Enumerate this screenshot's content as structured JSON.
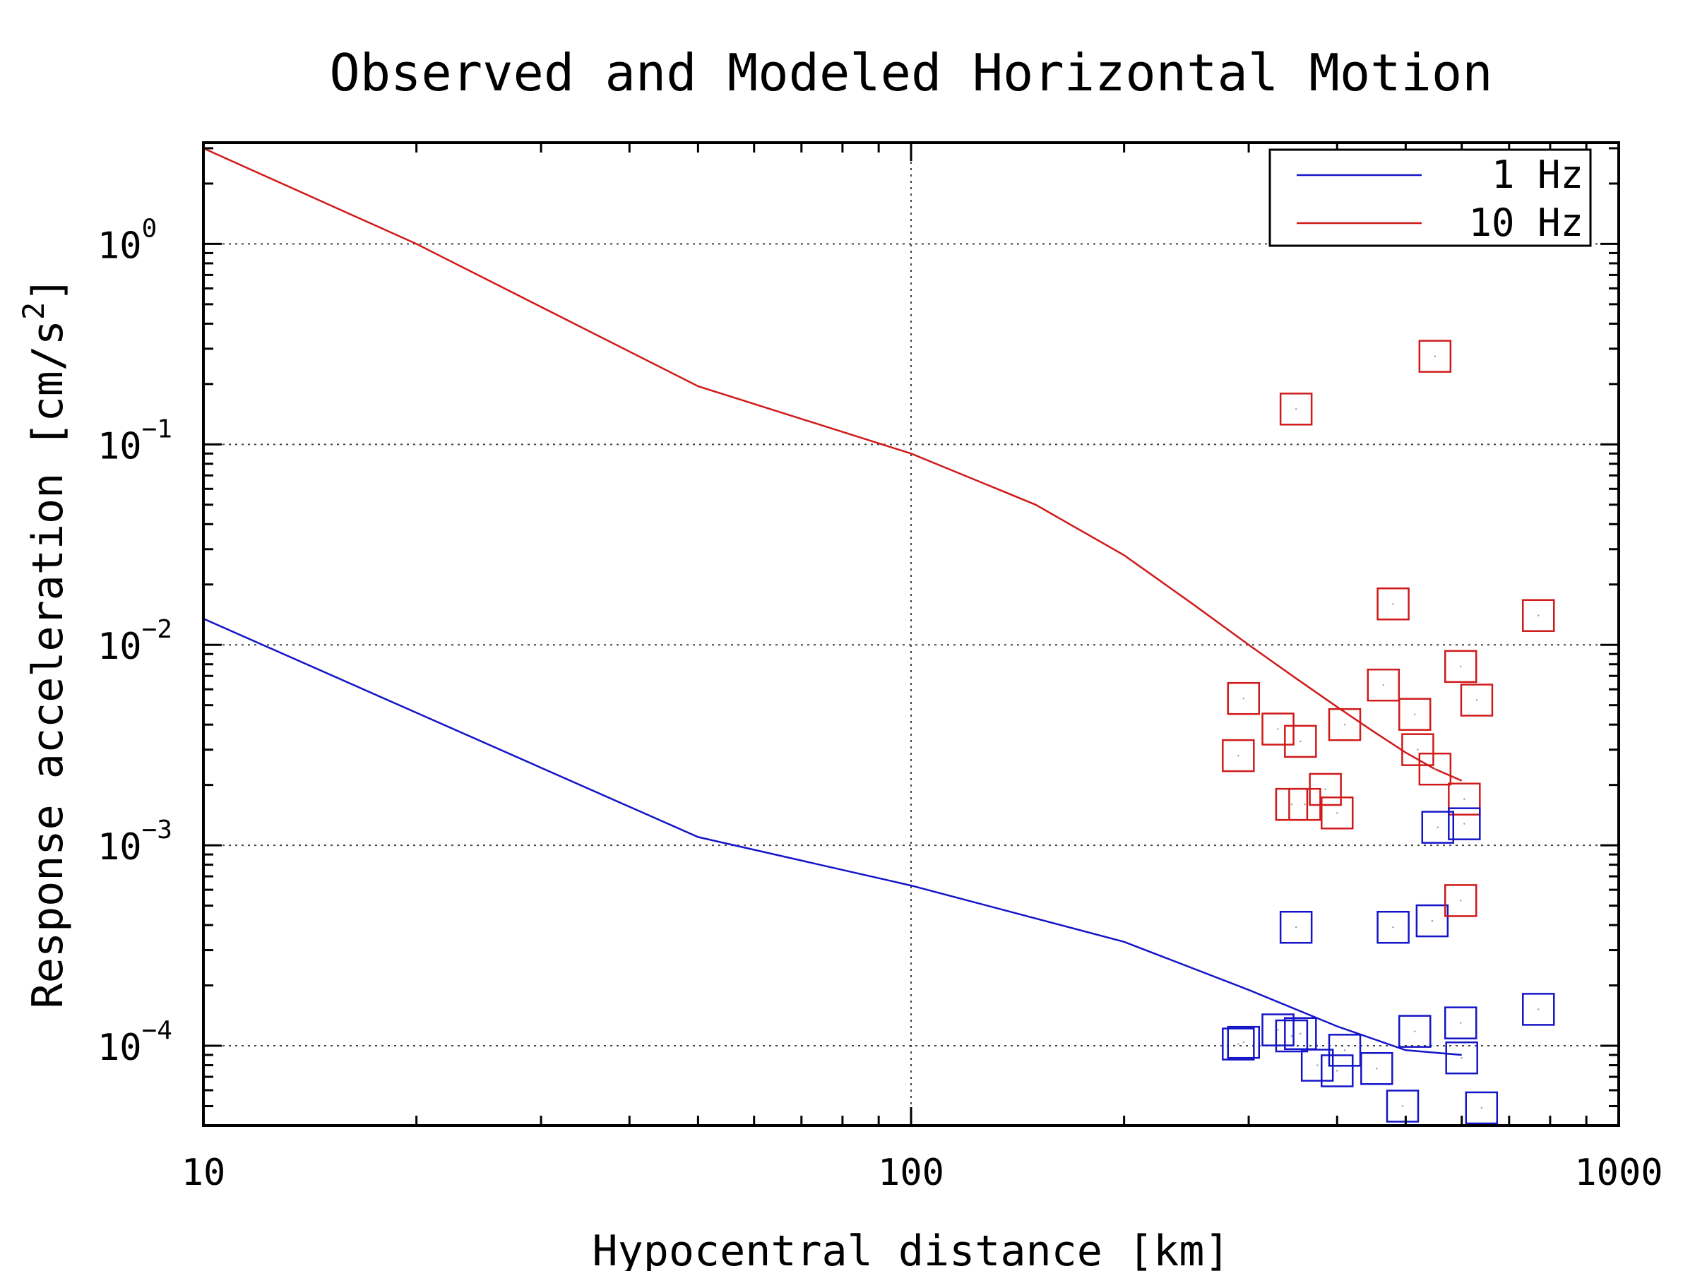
{
  "chart_data": {
    "type": "line",
    "title": "Observed and Modeled Horizontal Motion",
    "xlabel": "Hypocentral distance [km]",
    "ylabel": "Response acceleration [cm/s²]",
    "ylabel_text": "Response acceleration [cm/s",
    "ylabel_sup": "2",
    "ylabel_close": "]",
    "xscale": "log",
    "yscale": "log",
    "xlim": [
      10,
      1000
    ],
    "ylim": [
      4e-05,
      3.2
    ],
    "x_ticks": [
      {
        "value": 10,
        "label": "10"
      },
      {
        "value": 100,
        "label": "100"
      },
      {
        "value": 1000,
        "label": "1000"
      }
    ],
    "y_ticks": [
      {
        "value": 0.0001,
        "base": "10",
        "exp": "−4"
      },
      {
        "value": 0.001,
        "base": "10",
        "exp": "−3"
      },
      {
        "value": 0.01,
        "base": "10",
        "exp": "−2"
      },
      {
        "value": 0.1,
        "base": "10",
        "exp": "−1"
      },
      {
        "value": 1,
        "base": "10",
        "exp": "0"
      }
    ],
    "grid": true,
    "legend_position": "top-right",
    "series": [
      {
        "name": "1 Hz",
        "kind": "line",
        "color": "#1515c8",
        "x": [
          10,
          50,
          100,
          200,
          300,
          400,
          500,
          600
        ],
        "y": [
          0.0135,
          0.0011,
          0.00063,
          0.00033,
          0.00019,
          0.000125,
          9.5e-05,
          9e-05
        ]
      },
      {
        "name": "10 Hz",
        "kind": "line",
        "color": "#d01a1a",
        "x": [
          10,
          20,
          50,
          100,
          150,
          200,
          250,
          300,
          350,
          400,
          450,
          500,
          550,
          600
        ],
        "y": [
          3.0,
          1.0,
          0.195,
          0.09,
          0.05,
          0.028,
          0.016,
          0.01,
          0.0068,
          0.0049,
          0.0037,
          0.0029,
          0.0024,
          0.0021
        ]
      }
    ],
    "observed": [
      {
        "series": "10 Hz",
        "color": "#d01a1a",
        "marker": "square",
        "x": [
          350,
          550,
          290,
          295,
          330,
          355,
          410,
          345,
          360,
          385,
          400,
          465,
          480,
          515,
          520,
          550,
          598,
          605,
          630,
          770
        ],
        "y": [
          0.15,
          0.275,
          0.0028,
          0.0054,
          0.0038,
          0.0033,
          0.004,
          0.0016,
          0.0016,
          0.0019,
          0.00145,
          0.0063,
          0.016,
          0.0045,
          0.003,
          0.0024,
          0.0078,
          0.0017,
          0.0053,
          0.014
        ]
      },
      {
        "series": "1 Hz",
        "color": "#1515c8",
        "marker": "square",
        "x": [
          290,
          295,
          330,
          345,
          355,
          375,
          400,
          410,
          455,
          480,
          495,
          515,
          545,
          555,
          598,
          600,
          605,
          640,
          770
        ],
        "y": [
          0.000102,
          0.000104,
          0.00012,
          0.000112,
          0.000115,
          8e-05,
          7.5e-05,
          9.5e-05,
          7.7e-05,
          0.00039,
          5e-05,
          0.000118,
          0.00042,
          0.00123,
          0.00013,
          8.7e-05,
          0.00128,
          4.9e-05,
          0.000152
        ]
      },
      {
        "series": "1 Hz",
        "color": "#1515c8",
        "marker": "square",
        "x": [
          350
        ],
        "y": [
          0.00039
        ]
      },
      {
        "series": "10 Hz",
        "color": "#d01a1a",
        "marker": "square",
        "x": [
          598
        ],
        "y": [
          0.00053
        ]
      }
    ]
  }
}
